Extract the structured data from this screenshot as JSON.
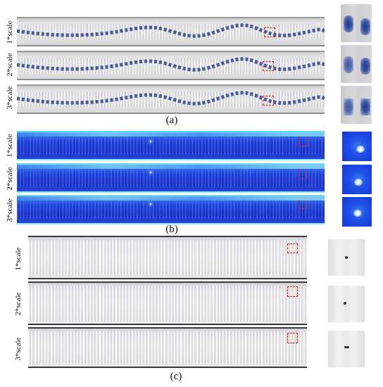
{
  "row_labels": [
    "1*scale",
    "2*scale",
    "3*scale"
  ],
  "panels": {
    "a": {
      "label": "(a)"
    },
    "b": {
      "label": "(b)"
    },
    "c": {
      "label": "(c)"
    }
  },
  "colors": {
    "highlight_box": "#e0201b",
    "droplet_dark_blue": "#1e3a8a",
    "fluorescence_blue": "#1a2fc8"
  }
}
